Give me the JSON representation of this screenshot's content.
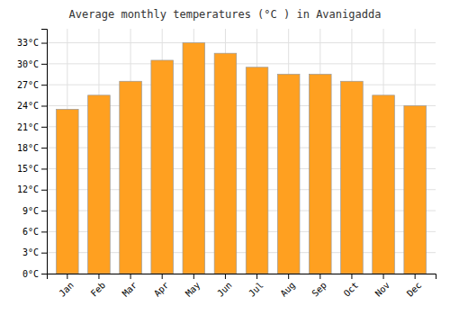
{
  "chart_data": {
    "type": "bar",
    "title": "Average monthly temperatures (°C ) in Avanigadda",
    "categories": [
      "Jan",
      "Feb",
      "Mar",
      "Apr",
      "May",
      "Jun",
      "Jul",
      "Aug",
      "Sep",
      "Oct",
      "Nov",
      "Dec"
    ],
    "values": [
      23.5,
      25.5,
      27.5,
      30.5,
      33.0,
      31.5,
      29.5,
      28.5,
      28.5,
      27.5,
      25.5,
      24.0
    ],
    "color": "#FFA020",
    "ylim": [
      0,
      35
    ],
    "yticks": [
      {
        "value": 0,
        "label": "0°C"
      },
      {
        "value": 3,
        "label": "3°C"
      },
      {
        "value": 6,
        "label": "6°C"
      },
      {
        "value": 9,
        "label": "9°C"
      },
      {
        "value": 12,
        "label": "12°C"
      },
      {
        "value": 15,
        "label": "15°C"
      },
      {
        "value": 18,
        "label": "18°C"
      },
      {
        "value": 21,
        "label": "21°C"
      },
      {
        "value": 24,
        "label": "24°C"
      },
      {
        "value": 27,
        "label": "27°C"
      },
      {
        "value": 30,
        "label": "30°C"
      },
      {
        "value": 33,
        "label": "33°C"
      }
    ],
    "grid": true
  }
}
